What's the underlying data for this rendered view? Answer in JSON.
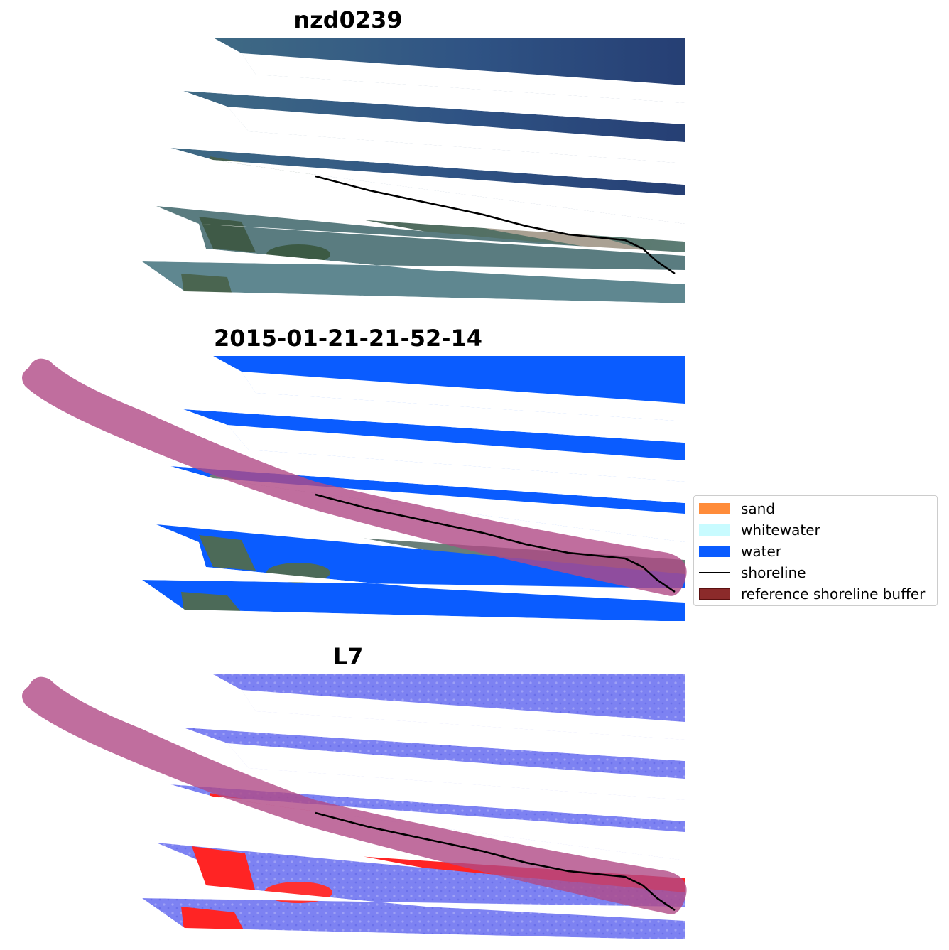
{
  "panels": [
    {
      "title": "nzd0239",
      "style": "rgb"
    },
    {
      "title": "2015-01-21-21-52-14",
      "style": "classified"
    },
    {
      "title": "L7",
      "style": "index"
    }
  ],
  "legend": {
    "items": [
      {
        "label": "sand",
        "color": "#ff8c3a",
        "kind": "patch"
      },
      {
        "label": "whitewater",
        "color": "#c8fbff",
        "kind": "patch"
      },
      {
        "label": "water",
        "color": "#0a5cff",
        "kind": "patch"
      },
      {
        "label": "shoreline",
        "color": "#000000",
        "kind": "line"
      },
      {
        "label": "reference shoreline buffer",
        "color": "#8b2a2a",
        "kind": "patch"
      }
    ]
  },
  "colors": {
    "rgb_water": "#2a4a80",
    "rgb_land": "#4f6a58",
    "rgb_sand": "#b8a89a",
    "class_water": "#0a5cff",
    "index_water": "#7a7ef0",
    "index_land": "#ff2020",
    "buffer": "#b04a86"
  }
}
